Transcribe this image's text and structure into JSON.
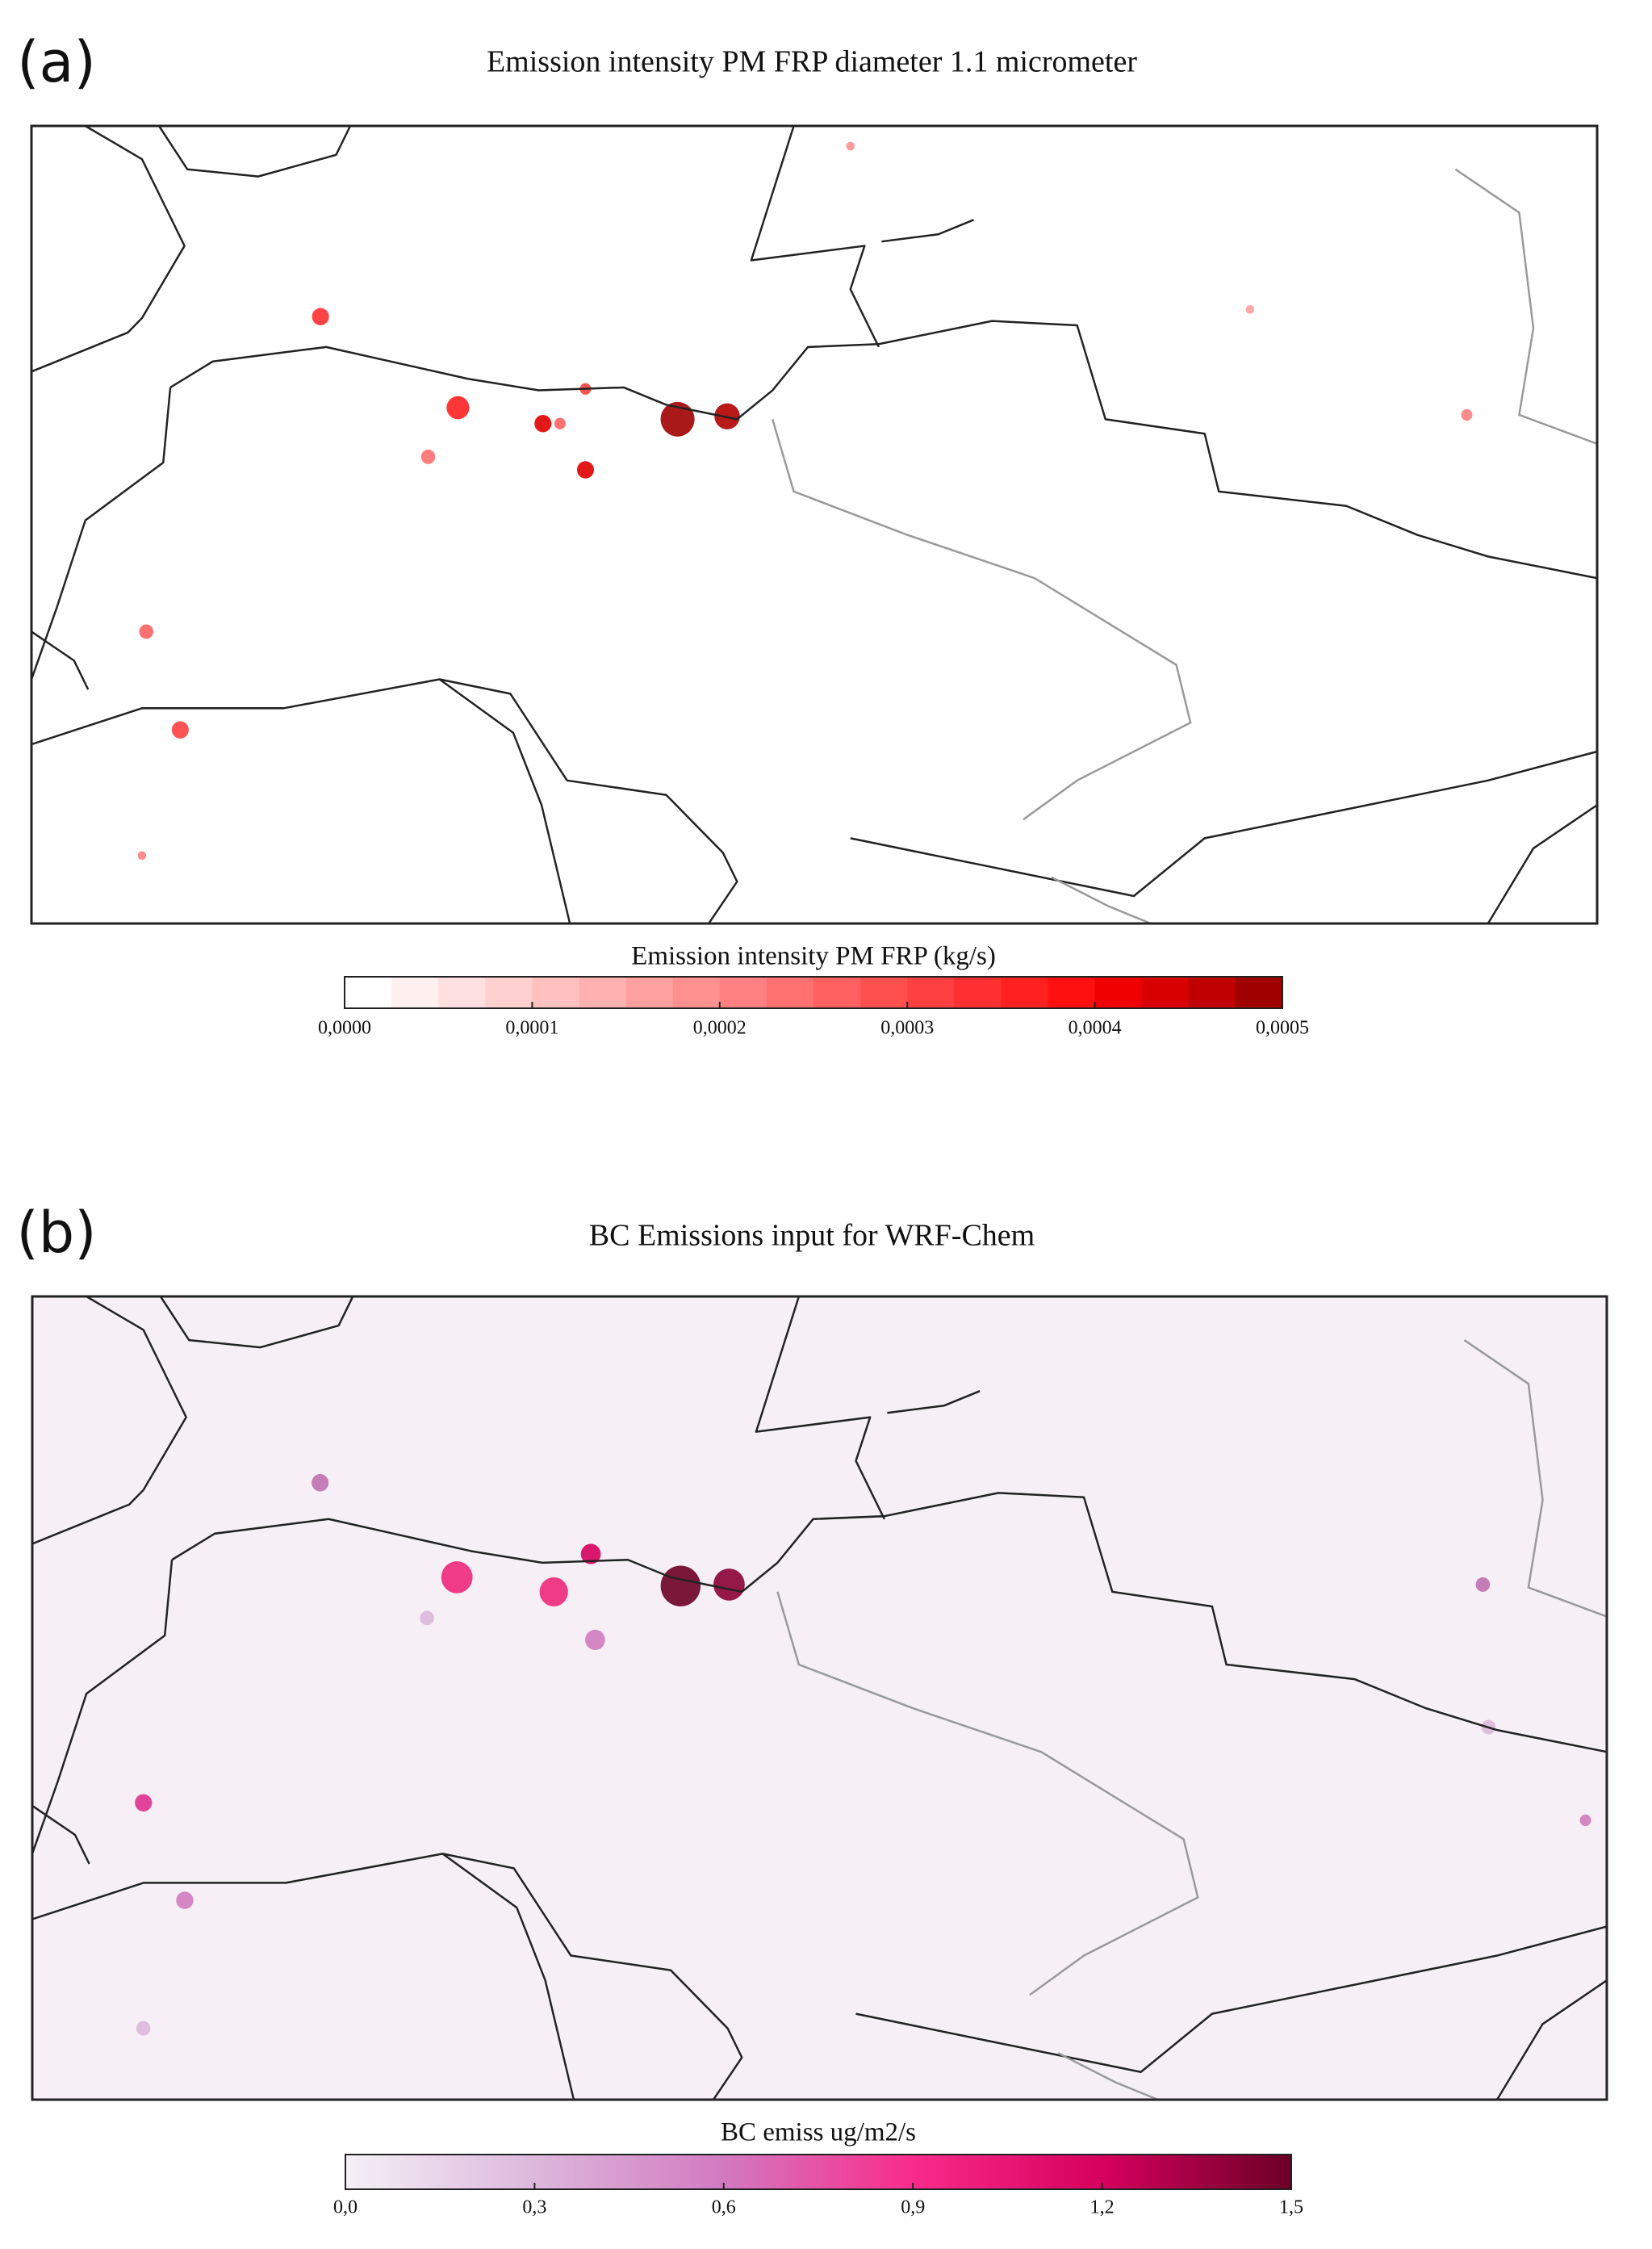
{
  "panels": [
    {
      "label": "(a)",
      "title": "Emission intensity PM FRP diameter 1.1 micrometer",
      "colorbar": {
        "label": "Emission intensity PM FRP (kg/s)",
        "lim": [
          0,
          0.0005
        ],
        "ticks": [
          {
            "value": 0,
            "label": "0,0000"
          },
          {
            "value": 0.0001,
            "label": "0,0001"
          },
          {
            "value": 0.0002,
            "label": "0,0002"
          },
          {
            "value": 0.0003,
            "label": "0,0003"
          },
          {
            "value": 0.0004,
            "label": "0,0004"
          },
          {
            "value": 0.0005,
            "label": "0,0005"
          }
        ],
        "colors": [
          "#ffffff",
          "#fff0f0",
          "#ffe0e0",
          "#ffd0d0",
          "#ffc0c0",
          "#ffb0b0",
          "#ffa0a0",
          "#ff9090",
          "#ff8080",
          "#ff7070",
          "#ff6060",
          "#ff5050",
          "#ff4040",
          "#ff3030",
          "#ff2020",
          "#ff1010",
          "#f00000",
          "#d80000",
          "#c00000",
          "#a00000"
        ]
      }
    },
    {
      "label": "(b)",
      "title": "BC Emissions input for WRF-Chem",
      "colorbar": {
        "label": "BC emiss ug/m2/s",
        "lim": [
          0,
          1.5
        ],
        "ticks": [
          {
            "value": 0,
            "label": "0,0"
          },
          {
            "value": 0.3,
            "label": "0,3"
          },
          {
            "value": 0.6,
            "label": "0,6"
          },
          {
            "value": 0.9,
            "label": "0,9"
          },
          {
            "value": 1.2,
            "label": "1,2"
          },
          {
            "value": 1.5,
            "label": "1,5"
          }
        ],
        "colors": [
          "#f5f0f7",
          "#dcb8dc",
          "#d27ac0",
          "#f92b8a",
          "#d6005e",
          "#6b0025"
        ]
      }
    }
  ]
}
